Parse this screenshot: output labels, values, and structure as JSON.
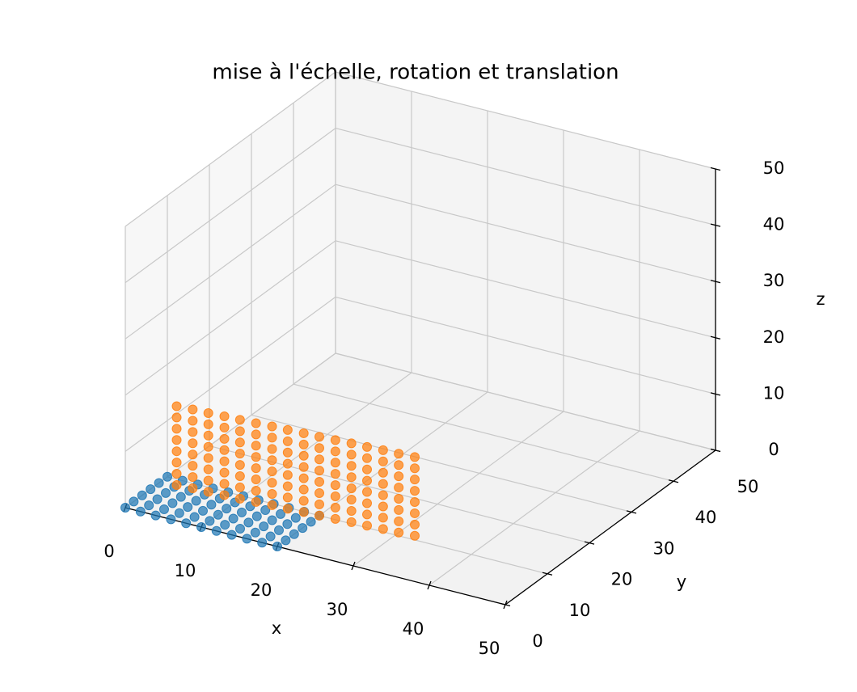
{
  "chart_data": {
    "type": "scatter3d",
    "title": "mise à l'échelle, rotation et translation",
    "xlabel": "x",
    "ylabel": "y",
    "zlabel": "z",
    "xlim": [
      0,
      50
    ],
    "ylim": [
      0,
      50
    ],
    "zlim": [
      0,
      50
    ],
    "xticks": [
      0,
      10,
      20,
      30,
      40,
      50
    ],
    "yticks": [
      0,
      10,
      20,
      30,
      40,
      50
    ],
    "zticks": [
      0,
      10,
      20,
      30,
      40,
      50
    ],
    "grid": true,
    "series": [
      {
        "color": "#1f77b4",
        "x": [
          0,
          2,
          4,
          6,
          8,
          10,
          12,
          14,
          16,
          18,
          20,
          0,
          2,
          4,
          6,
          8,
          10,
          12,
          14,
          16,
          18,
          20,
          0,
          2,
          4,
          6,
          8,
          10,
          12,
          14,
          16,
          18,
          20,
          0,
          2,
          4,
          6,
          8,
          10,
          12,
          14,
          16,
          18,
          20,
          0,
          2,
          4,
          6,
          8,
          10,
          12,
          14,
          16,
          18,
          20,
          0,
          2,
          4,
          6,
          8,
          10,
          12,
          14,
          16,
          18,
          20
        ],
        "y": [
          0,
          0,
          0,
          0,
          0,
          0,
          0,
          0,
          0,
          0,
          0,
          2,
          2,
          2,
          2,
          2,
          2,
          2,
          2,
          2,
          2,
          2,
          4,
          4,
          4,
          4,
          4,
          4,
          4,
          4,
          4,
          4,
          4,
          6,
          6,
          6,
          6,
          6,
          6,
          6,
          6,
          6,
          6,
          6,
          8,
          8,
          8,
          8,
          8,
          8,
          8,
          8,
          8,
          8,
          8,
          10,
          10,
          10,
          10,
          10,
          10,
          10,
          10,
          10,
          10,
          10
        ],
        "z": [
          0,
          0,
          0,
          0,
          0,
          0,
          0,
          0,
          0,
          0,
          0,
          0,
          0,
          0,
          0,
          0,
          0,
          0,
          0,
          0,
          0,
          0,
          0,
          0,
          0,
          0,
          0,
          0,
          0,
          0,
          0,
          0,
          0,
          0,
          0,
          0,
          0,
          0,
          0,
          0,
          0,
          0,
          0,
          0,
          0,
          0,
          0,
          0,
          0,
          0,
          0,
          0,
          0,
          0,
          0,
          0,
          0,
          0,
          0,
          0,
          0,
          0,
          0,
          0,
          0,
          0
        ]
      },
      {
        "color": "#ff7f0e",
        "x": [
          2,
          4,
          6,
          8,
          10,
          12,
          14,
          16,
          18,
          20,
          22,
          24,
          26,
          28,
          30,
          32,
          2,
          4,
          6,
          8,
          10,
          12,
          14,
          16,
          18,
          20,
          22,
          24,
          26,
          28,
          30,
          32,
          2,
          4,
          6,
          8,
          10,
          12,
          14,
          16,
          18,
          20,
          22,
          24,
          26,
          28,
          30,
          32,
          2,
          4,
          6,
          8,
          10,
          12,
          14,
          16,
          18,
          20,
          22,
          24,
          26,
          28,
          30,
          32,
          2,
          4,
          6,
          8,
          10,
          12,
          14,
          16,
          18,
          20,
          22,
          24,
          26,
          28,
          30,
          32,
          2,
          4,
          6,
          8,
          10,
          12,
          14,
          16,
          18,
          20,
          22,
          24,
          26,
          28,
          30,
          32,
          2,
          4,
          6,
          8,
          10,
          12,
          14,
          16,
          18,
          20,
          22,
          24,
          26,
          28,
          30,
          32,
          2,
          4,
          6,
          8,
          10,
          12,
          14,
          16,
          18,
          20,
          22,
          24,
          26,
          28,
          30,
          32
        ],
        "y": [
          8.6,
          8.8,
          8.9,
          9.1,
          9.2,
          9.4,
          9.6,
          9.7,
          9.9,
          10,
          10.2,
          10.4,
          10.5,
          10.7,
          10.8,
          11,
          8.6,
          8.8,
          8.9,
          9.1,
          9.2,
          9.4,
          9.6,
          9.7,
          9.9,
          10,
          10.2,
          10.4,
          10.5,
          10.7,
          10.8,
          11,
          8.6,
          8.8,
          8.9,
          9.1,
          9.2,
          9.4,
          9.6,
          9.7,
          9.9,
          10,
          10.2,
          10.4,
          10.5,
          10.7,
          10.8,
          11,
          8.6,
          8.8,
          8.9,
          9.1,
          9.2,
          9.4,
          9.6,
          9.7,
          9.9,
          10,
          10.2,
          10.4,
          10.5,
          10.7,
          10.8,
          11,
          8.6,
          8.8,
          8.9,
          9.1,
          9.2,
          9.4,
          9.6,
          9.7,
          9.9,
          10,
          10.2,
          10.4,
          10.5,
          10.7,
          10.8,
          11,
          8.6,
          8.8,
          8.9,
          9.1,
          9.2,
          9.4,
          9.6,
          9.7,
          9.9,
          10,
          10.2,
          10.4,
          10.5,
          10.7,
          10.8,
          11,
          8.6,
          8.8,
          8.9,
          9.1,
          9.2,
          9.4,
          9.6,
          9.7,
          9.9,
          10,
          10.2,
          10.4,
          10.5,
          10.7,
          10.8,
          11,
          8.6,
          8.8,
          8.9,
          9.1,
          9.2,
          9.4,
          9.6,
          9.7,
          9.9,
          10,
          10.2,
          10.4,
          10.5,
          10.7,
          10.8,
          11
        ],
        "z": [
          0,
          0,
          0,
          0,
          0,
          0,
          0,
          0,
          0,
          0,
          0,
          0,
          0,
          0,
          0,
          0,
          2,
          2,
          2,
          2,
          2,
          2,
          2,
          2,
          2,
          2,
          2,
          2,
          2,
          2,
          2,
          2,
          4,
          4,
          4,
          4,
          4,
          4,
          4,
          4,
          4,
          4,
          4,
          4,
          4,
          4,
          4,
          4,
          6,
          6,
          6,
          6,
          6,
          6,
          6,
          6,
          6,
          6,
          6,
          6,
          6,
          6,
          6,
          6,
          8,
          8,
          8,
          8,
          8,
          8,
          8,
          8,
          8,
          8,
          8,
          8,
          8,
          8,
          8,
          8,
          10,
          10,
          10,
          10,
          10,
          10,
          10,
          10,
          10,
          10,
          10,
          10,
          10,
          10,
          10,
          10,
          12,
          12,
          12,
          12,
          12,
          12,
          12,
          12,
          12,
          12,
          12,
          12,
          12,
          12,
          12,
          12,
          14,
          14,
          14,
          14,
          14,
          14,
          14,
          14,
          14,
          14,
          14,
          14,
          14,
          14,
          14,
          14
        ]
      }
    ]
  }
}
